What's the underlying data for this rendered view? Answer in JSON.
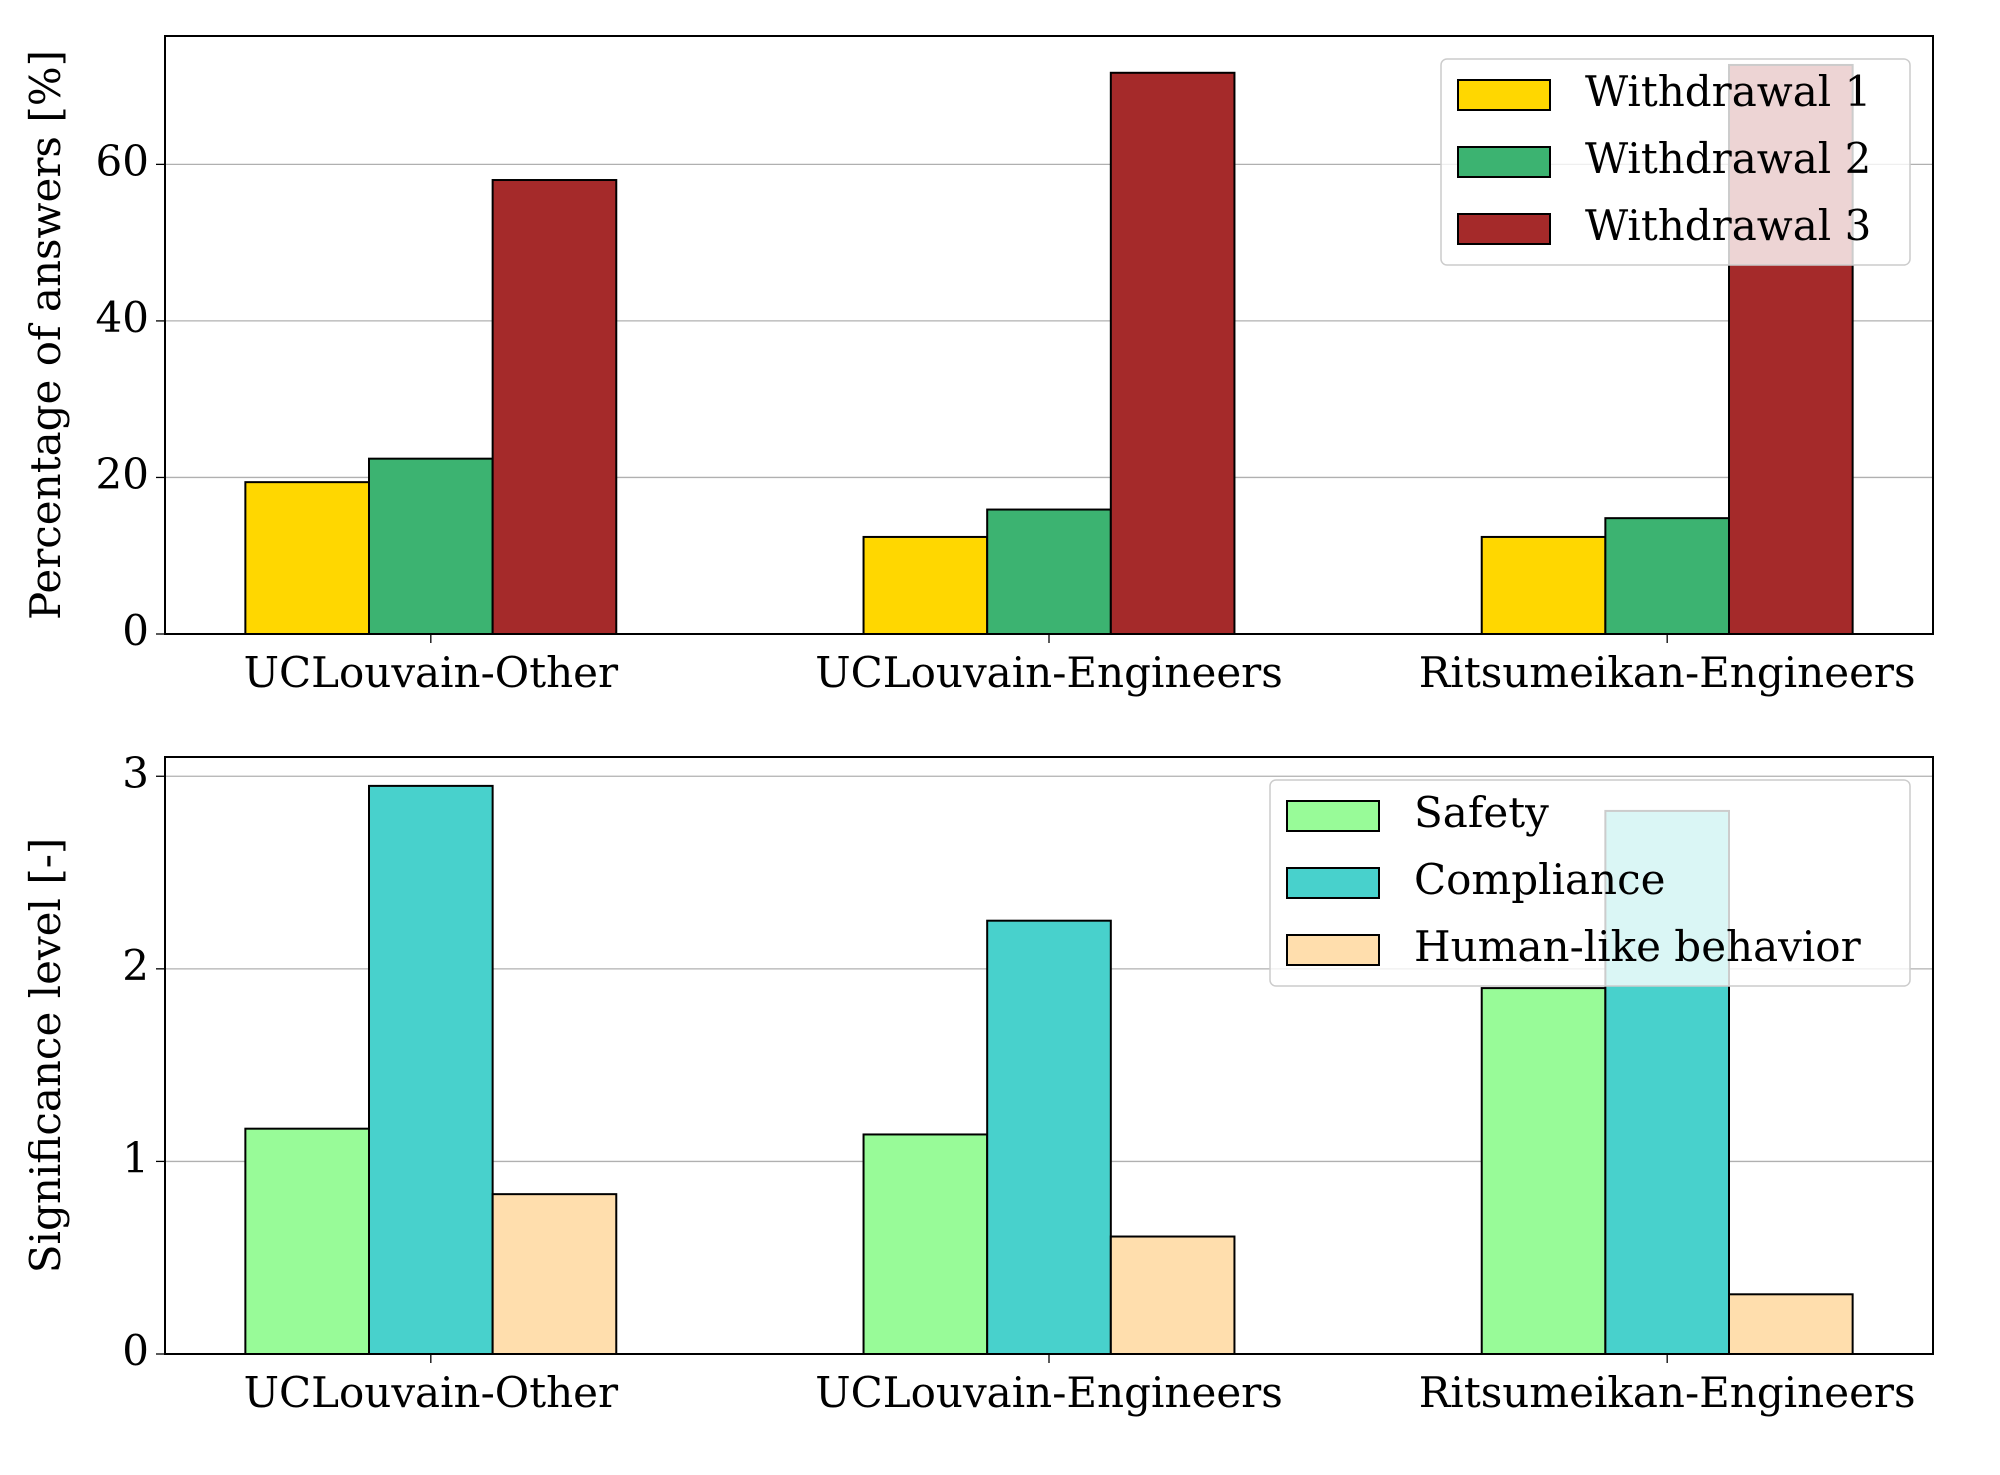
{
  "chart_data": [
    {
      "type": "bar",
      "ylabel": "Percentage of answers [%]",
      "categories": [
        "UCLouvain-Other",
        "UCLouvain-Engineers",
        "Ritsumeikan-Engineers"
      ],
      "series": [
        {
          "name": "Withdrawal 1",
          "color": "#ffd700",
          "values": [
            19.4,
            12.4,
            12.4
          ]
        },
        {
          "name": "Withdrawal 2",
          "color": "#3cb371",
          "values": [
            22.4,
            15.9,
            14.8
          ]
        },
        {
          "name": "Withdrawal 3",
          "color": "#a52a2a",
          "values": [
            58.0,
            71.7,
            72.7
          ]
        }
      ],
      "ylim": [
        0,
        76.4
      ],
      "yticks": [
        0,
        20,
        40,
        60
      ],
      "grid": true,
      "legend": "upper-right"
    },
    {
      "type": "bar",
      "ylabel": "Significance level [-]",
      "categories": [
        "UCLouvain-Other",
        "UCLouvain-Engineers",
        "Ritsumeikan-Engineers"
      ],
      "series": [
        {
          "name": "Safety",
          "color": "#98fb98",
          "values": [
            1.17,
            1.14,
            1.9
          ]
        },
        {
          "name": "Compliance",
          "color": "#48d1cc",
          "values": [
            2.95,
            2.25,
            2.82
          ]
        },
        {
          "name": "Human-like behavior",
          "color": "#ffdead",
          "values": [
            0.83,
            0.61,
            0.31
          ]
        }
      ],
      "ylim": [
        0,
        3.1
      ],
      "yticks": [
        0,
        1,
        2,
        3
      ],
      "grid": true,
      "legend": "upper-right"
    }
  ]
}
